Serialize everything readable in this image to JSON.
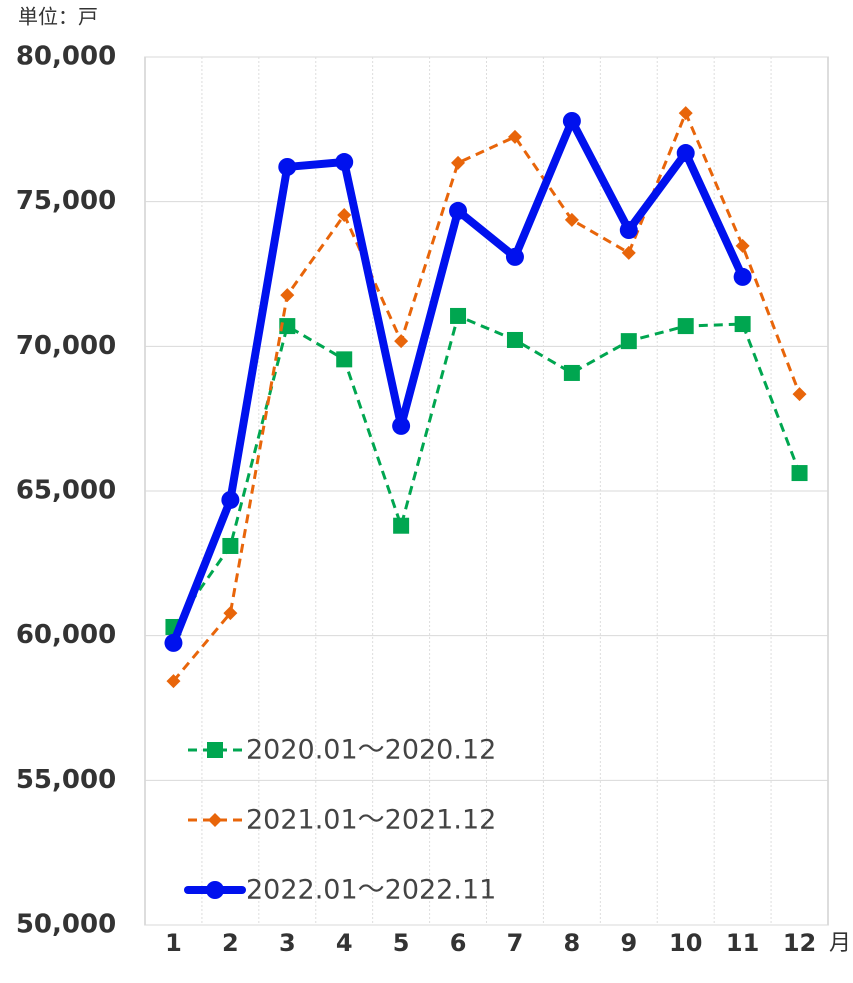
{
  "chart_data": {
    "type": "line",
    "unit_label": "単位：戸",
    "x_unit_label": "月",
    "categories": [
      "1",
      "2",
      "3",
      "4",
      "5",
      "6",
      "7",
      "8",
      "9",
      "10",
      "11",
      "12"
    ],
    "series": [
      {
        "name": "2020.01～2020.12",
        "color": "#00a650",
        "marker": "square",
        "dash": true,
        "values": [
          60300,
          63100,
          70700,
          69550,
          63800,
          71050,
          70220,
          69080,
          70180,
          70700,
          70770,
          65620
        ]
      },
      {
        "name": "2021.01～2021.12",
        "color": "#e8650a",
        "marker": "diamond",
        "dash": true,
        "values": [
          58430,
          60780,
          71770,
          74540,
          70180,
          76340,
          77240,
          74370,
          73230,
          78060,
          73470,
          68350
        ]
      },
      {
        "name": "2022.01～2022.11",
        "color": "#0011ee",
        "marker": "circle",
        "dash": false,
        "values": [
          59750,
          64690,
          76200,
          76370,
          67250,
          74680,
          73090,
          77790,
          74020,
          76680,
          72400,
          null
        ]
      }
    ],
    "ylim": [
      50000,
      80000
    ],
    "yticks": [
      {
        "value": 50000,
        "label": "50,000"
      },
      {
        "value": 55000,
        "label": "55,000"
      },
      {
        "value": 60000,
        "label": "60,000"
      },
      {
        "value": 65000,
        "label": "65,000"
      },
      {
        "value": 70000,
        "label": "70,000"
      },
      {
        "value": 75000,
        "label": "75,000"
      },
      {
        "value": 80000,
        "label": "80,000"
      }
    ],
    "grid": true,
    "legend": "lower left"
  }
}
